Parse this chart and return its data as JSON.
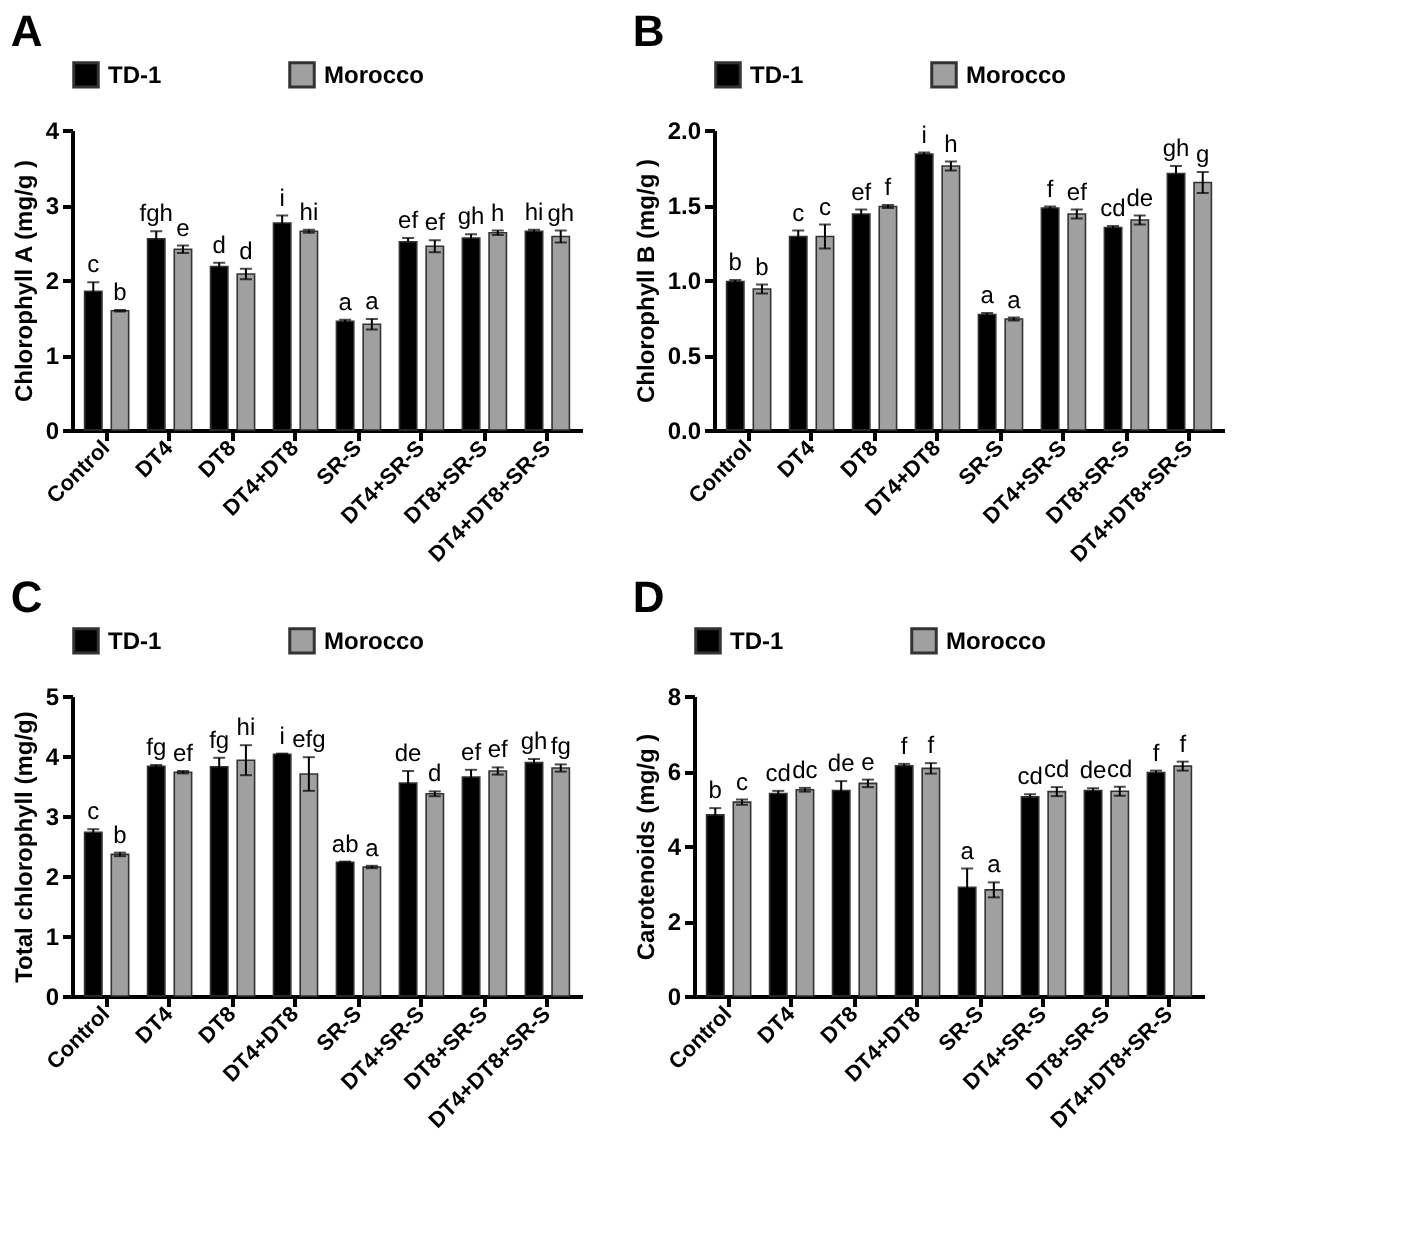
{
  "chart_data": [
    {
      "type": "bar",
      "title": "A",
      "ylabel": "Chlorophyll A (mg/g )",
      "categories": [
        "Control",
        "DT4",
        "DT8",
        "DT4+DT8",
        "SR-S",
        "DT4+SR-S",
        "DT8+SR-S",
        "DT4+DT8+SR-S"
      ],
      "ylim": [
        0,
        4
      ],
      "yticks": [
        0,
        1,
        2,
        3,
        4
      ],
      "grid": false,
      "legend": "top",
      "series": [
        {
          "name": "TD-1",
          "color": "#000000",
          "values": [
            1.85,
            2.55,
            2.18,
            2.76,
            1.45,
            2.51,
            2.56,
            2.65
          ],
          "errors": [
            0.12,
            0.1,
            0.05,
            0.1,
            0.02,
            0.05,
            0.05,
            0.02
          ],
          "value_labels": [
            "c",
            "fgh",
            "d",
            "i",
            "a",
            "ef",
            "gh",
            "hi"
          ]
        },
        {
          "name": "Morocco",
          "color": "#a0a0a0",
          "values": [
            1.59,
            2.41,
            2.08,
            2.65,
            1.41,
            2.45,
            2.63,
            2.58
          ],
          "errors": [
            0.01,
            0.05,
            0.07,
            0.02,
            0.07,
            0.08,
            0.03,
            0.08
          ],
          "value_labels": [
            "b",
            "e",
            "d",
            "hi",
            "a",
            "ef",
            "h",
            "gh"
          ]
        }
      ]
    },
    {
      "type": "bar",
      "title": "B",
      "ylabel": "Chlorophyll B (mg/g )",
      "categories": [
        "Control",
        "DT4",
        "DT8",
        "DT4+DT8",
        "SR-S",
        "DT4+SR-S",
        "DT8+SR-S",
        "DT4+DT8+SR-S"
      ],
      "ylim": [
        0,
        2
      ],
      "yticks": [
        {
          "value": 0,
          "label": "0.0"
        },
        0.5,
        {
          "value": 1,
          "label": "1.0"
        },
        1.5,
        {
          "value": 2,
          "label": "2.0"
        }
      ],
      "grid": false,
      "legend": "top",
      "series": [
        {
          "name": "TD-1",
          "color": "#000000",
          "values": [
            0.99,
            1.29,
            1.44,
            1.84,
            0.77,
            1.48,
            1.35,
            1.71
          ],
          "errors": [
            0.01,
            0.04,
            0.03,
            0.01,
            0.01,
            0.01,
            0.01,
            0.05
          ],
          "value_labels": [
            "b",
            "c",
            "ef",
            "i",
            "a",
            "f",
            "cd",
            "gh"
          ]
        },
        {
          "name": "Morocco",
          "color": "#a0a0a0",
          "values": [
            0.94,
            1.29,
            1.49,
            1.76,
            0.74,
            1.44,
            1.4,
            1.65
          ],
          "errors": [
            0.03,
            0.08,
            0.01,
            0.03,
            0.01,
            0.03,
            0.03,
            0.07
          ],
          "value_labels": [
            "b",
            "c",
            "f",
            "h",
            "a",
            "ef",
            "de",
            "g"
          ]
        }
      ]
    },
    {
      "type": "bar",
      "title": "C",
      "ylabel": "Total chlorophyll (mg/g)",
      "categories": [
        "Control",
        "DT4",
        "DT8",
        "DT4+DT8",
        "SR-S",
        "DT4+SR-S",
        "DT8+SR-S",
        "DT4+DT8+SR-S"
      ],
      "ylim": [
        0,
        5
      ],
      "yticks": [
        0,
        1,
        2,
        3,
        4,
        5
      ],
      "grid": false,
      "legend": "top",
      "series": [
        {
          "name": "TD-1",
          "color": "#000000",
          "values": [
            2.73,
            3.83,
            3.82,
            4.03,
            2.23,
            3.55,
            3.65,
            3.89
          ],
          "errors": [
            0.05,
            0.02,
            0.15,
            0.01,
            0.01,
            0.2,
            0.12,
            0.06
          ],
          "value_labels": [
            "c",
            "fg",
            "fg",
            "i",
            "ab",
            "de",
            "ef",
            "gh"
          ]
        },
        {
          "name": "Morocco",
          "color": "#a0a0a0",
          "values": [
            2.36,
            3.73,
            3.93,
            3.7,
            2.15,
            3.37,
            3.75,
            3.8
          ],
          "errors": [
            0.03,
            0.02,
            0.25,
            0.28,
            0.02,
            0.04,
            0.06,
            0.06
          ],
          "value_labels": [
            "b",
            "ef",
            "hi",
            "efg",
            "a",
            "d",
            "ef",
            "fg"
          ]
        }
      ]
    },
    {
      "type": "bar",
      "title": "D",
      "ylabel": "Carotenoids (mg/g )",
      "categories": [
        "Control",
        "DT4",
        "DT8",
        "DT4+DT8",
        "SR-S",
        "DT4+SR-S",
        "DT8+SR-S",
        "DT4+DT8+SR-S"
      ],
      "ylim": [
        0,
        8
      ],
      "yticks": [
        0,
        2,
        4,
        6,
        8
      ],
      "grid": false,
      "legend": "top",
      "series": [
        {
          "name": "TD-1",
          "color": "#000000",
          "values": [
            4.83,
            5.4,
            5.48,
            6.14,
            2.9,
            5.31,
            5.48,
            5.96
          ],
          "errors": [
            0.18,
            0.07,
            0.25,
            0.05,
            0.5,
            0.07,
            0.06,
            0.05
          ],
          "value_labels": [
            "b",
            "cd",
            "de",
            "f",
            "a",
            "cd",
            "de",
            "f"
          ]
        },
        {
          "name": "Morocco",
          "color": "#a0a0a0",
          "values": [
            5.17,
            5.5,
            5.67,
            6.07,
            2.83,
            5.45,
            5.46,
            6.13
          ],
          "errors": [
            0.07,
            0.05,
            0.1,
            0.14,
            0.2,
            0.12,
            0.12,
            0.12
          ],
          "value_labels": [
            "c",
            "dc",
            "e",
            "f",
            "a",
            "cd",
            "cd",
            "f"
          ]
        }
      ]
    }
  ]
}
